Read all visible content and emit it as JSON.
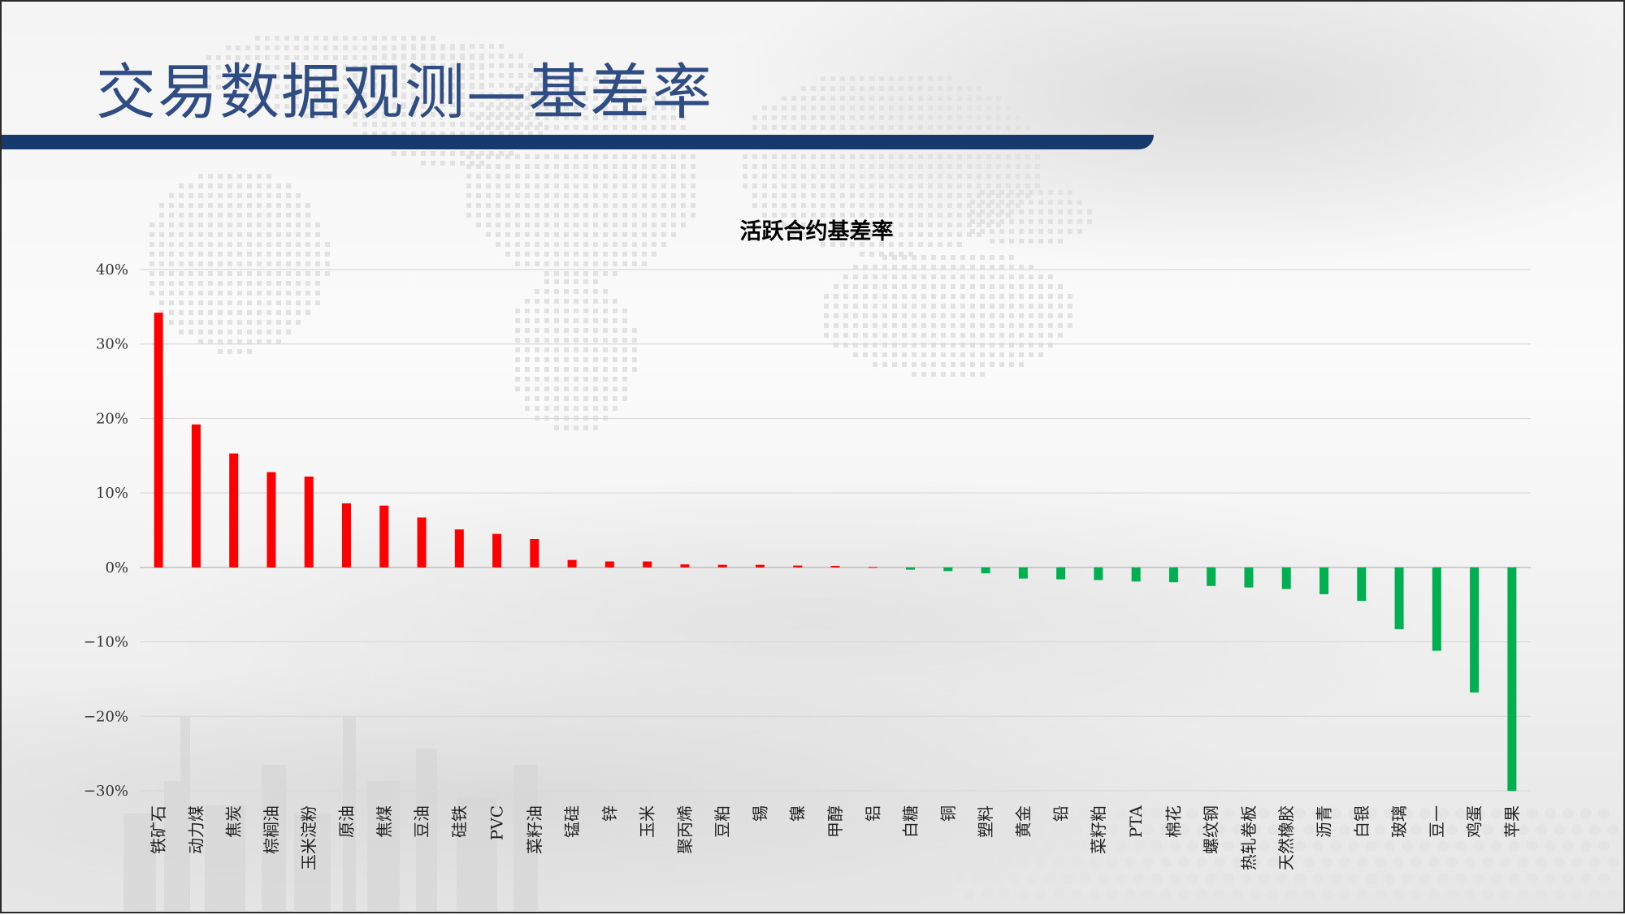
{
  "slide": {
    "title": "交易数据观测—基差率"
  },
  "colors": {
    "title": "#2f4d83",
    "header_bar": "#16396e",
    "positive": "#ff0000",
    "negative": "#00b050",
    "gridline": "#d9d9d9"
  },
  "chart_data": {
    "type": "bar",
    "title": "活跃合约基差率",
    "xlabel": "",
    "ylabel": "",
    "ylim": [
      -30,
      40
    ],
    "yticks": [
      40,
      30,
      20,
      10,
      0,
      -10,
      -20,
      -30
    ],
    "ytick_labels": [
      "40%",
      "30%",
      "20%",
      "10%",
      "0%",
      "−10%",
      "−20%",
      "−30%"
    ],
    "grid": true,
    "categories": [
      "铁矿石",
      "动力煤",
      "焦炭",
      "棕榈油",
      "玉米淀粉",
      "原油",
      "焦煤",
      "豆油",
      "硅铁",
      "PVC",
      "菜籽油",
      "锰硅",
      "锌",
      "玉米",
      "聚丙烯",
      "豆粕",
      "锡",
      "镍",
      "甲醇",
      "铝",
      "白糖",
      "铜",
      "塑料",
      "黄金",
      "铅",
      "菜籽粕",
      "PTA",
      "棉花",
      "螺纹钢",
      "热轧卷板",
      "天然橡胶",
      "沥青",
      "白银",
      "玻璃",
      "豆一",
      "鸡蛋",
      "苹果"
    ],
    "values": [
      34.2,
      19.2,
      15.3,
      12.8,
      12.2,
      8.6,
      8.3,
      6.7,
      5.1,
      4.5,
      3.8,
      1.0,
      0.8,
      0.8,
      0.4,
      0.35,
      0.35,
      0.25,
      0.2,
      0.05,
      -0.3,
      -0.5,
      -0.8,
      -1.5,
      -1.6,
      -1.7,
      -1.9,
      -2.0,
      -2.5,
      -2.7,
      -2.9,
      -3.6,
      -4.5,
      -8.3,
      -11.2,
      -16.8,
      -30.0
    ]
  }
}
